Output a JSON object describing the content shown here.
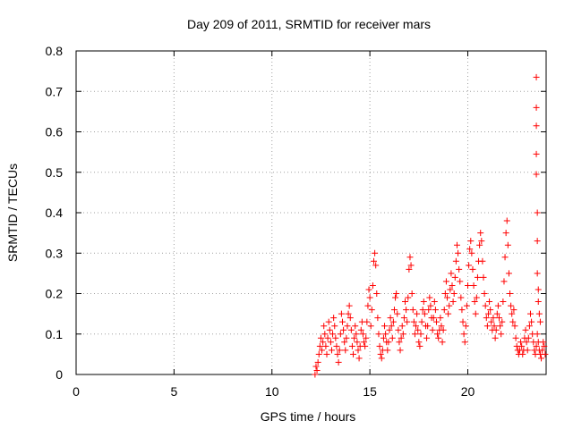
{
  "chart_data": {
    "type": "scatter",
    "title": "Day 209 of 2011, SRMTID for receiver mars",
    "xlabel": "GPS time / hours",
    "ylabel": "SRMTID / TECUs",
    "xlim": [
      0,
      24
    ],
    "ylim": [
      0,
      0.8
    ],
    "x_ticks": [
      0,
      5,
      10,
      15,
      20
    ],
    "y_ticks": [
      0,
      0.1,
      0.2,
      0.3,
      0.4,
      0.5,
      0.6,
      0.7,
      0.8
    ],
    "x_tick_labels": [
      "0",
      "5",
      "10",
      "15",
      "20"
    ],
    "y_tick_labels": [
      "0",
      "0.1",
      "0.2",
      "0.3",
      "0.4",
      "0.5",
      "0.6",
      "0.7",
      "0.8"
    ],
    "grid": true,
    "marker": "+",
    "color": "#ff0000",
    "series": [
      {
        "name": "SRMTID",
        "points": [
          [
            12.2,
            0.0
          ],
          [
            12.25,
            0.02
          ],
          [
            12.3,
            0.01
          ],
          [
            12.35,
            0.03
          ],
          [
            12.4,
            0.05
          ],
          [
            12.45,
            0.07
          ],
          [
            12.5,
            0.09
          ],
          [
            12.55,
            0.06
          ],
          [
            12.6,
            0.08
          ],
          [
            12.65,
            0.12
          ],
          [
            12.7,
            0.1
          ],
          [
            12.75,
            0.07
          ],
          [
            12.8,
            0.05
          ],
          [
            12.85,
            0.09
          ],
          [
            12.9,
            0.13
          ],
          [
            12.95,
            0.11
          ],
          [
            13.0,
            0.08
          ],
          [
            13.05,
            0.06
          ],
          [
            13.1,
            0.1
          ],
          [
            13.15,
            0.14
          ],
          [
            13.2,
            0.12
          ],
          [
            13.25,
            0.09
          ],
          [
            13.3,
            0.07
          ],
          [
            13.35,
            0.05
          ],
          [
            13.4,
            0.03
          ],
          [
            13.45,
            0.06
          ],
          [
            13.5,
            0.1
          ],
          [
            13.55,
            0.15
          ],
          [
            13.6,
            0.13
          ],
          [
            13.65,
            0.11
          ],
          [
            13.7,
            0.08
          ],
          [
            13.75,
            0.06
          ],
          [
            13.8,
            0.09
          ],
          [
            13.85,
            0.12
          ],
          [
            13.9,
            0.15
          ],
          [
            13.95,
            0.17
          ],
          [
            14.0,
            0.14
          ],
          [
            14.05,
            0.11
          ],
          [
            14.1,
            0.07
          ],
          [
            14.15,
            0.05
          ],
          [
            14.2,
            0.09
          ],
          [
            14.25,
            0.12
          ],
          [
            14.3,
            0.1
          ],
          [
            14.35,
            0.08
          ],
          [
            14.4,
            0.06
          ],
          [
            14.45,
            0.04
          ],
          [
            14.5,
            0.07
          ],
          [
            14.55,
            0.11
          ],
          [
            14.6,
            0.13
          ],
          [
            14.65,
            0.1
          ],
          [
            14.7,
            0.08
          ],
          [
            14.75,
            0.07
          ],
          [
            14.8,
            0.09
          ],
          [
            14.85,
            0.13
          ],
          [
            14.9,
            0.17
          ],
          [
            14.95,
            0.21
          ],
          [
            15.0,
            0.19
          ],
          [
            15.05,
            0.12
          ],
          [
            15.1,
            0.16
          ],
          [
            15.15,
            0.22
          ],
          [
            15.2,
            0.28
          ],
          [
            15.25,
            0.3
          ],
          [
            15.3,
            0.27
          ],
          [
            15.35,
            0.2
          ],
          [
            15.4,
            0.14
          ],
          [
            15.45,
            0.1
          ],
          [
            15.5,
            0.07
          ],
          [
            15.55,
            0.05
          ],
          [
            15.6,
            0.04
          ],
          [
            15.65,
            0.06
          ],
          [
            15.7,
            0.09
          ],
          [
            15.75,
            0.12
          ],
          [
            15.8,
            0.1
          ],
          [
            15.85,
            0.08
          ],
          [
            15.9,
            0.06
          ],
          [
            15.95,
            0.08
          ],
          [
            16.0,
            0.11
          ],
          [
            16.05,
            0.14
          ],
          [
            16.1,
            0.12
          ],
          [
            16.15,
            0.09
          ],
          [
            16.2,
            0.13
          ],
          [
            16.25,
            0.16
          ],
          [
            16.3,
            0.19
          ],
          [
            16.35,
            0.2
          ],
          [
            16.4,
            0.15
          ],
          [
            16.45,
            0.11
          ],
          [
            16.5,
            0.08
          ],
          [
            16.55,
            0.06
          ],
          [
            16.6,
            0.09
          ],
          [
            16.65,
            0.12
          ],
          [
            16.7,
            0.1
          ],
          [
            16.75,
            0.14
          ],
          [
            16.8,
            0.18
          ],
          [
            16.85,
            0.16
          ],
          [
            16.9,
            0.13
          ],
          [
            16.95,
            0.19
          ],
          [
            17.0,
            0.26
          ],
          [
            17.05,
            0.29
          ],
          [
            17.1,
            0.27
          ],
          [
            17.15,
            0.2
          ],
          [
            17.2,
            0.16
          ],
          [
            17.25,
            0.13
          ],
          [
            17.3,
            0.1
          ],
          [
            17.35,
            0.12
          ],
          [
            17.4,
            0.15
          ],
          [
            17.45,
            0.11
          ],
          [
            17.5,
            0.08
          ],
          [
            17.55,
            0.07
          ],
          [
            17.6,
            0.1
          ],
          [
            17.65,
            0.13
          ],
          [
            17.7,
            0.16
          ],
          [
            17.75,
            0.18
          ],
          [
            17.8,
            0.15
          ],
          [
            17.85,
            0.12
          ],
          [
            17.9,
            0.09
          ],
          [
            17.95,
            0.12
          ],
          [
            18.0,
            0.16
          ],
          [
            18.05,
            0.19
          ],
          [
            18.1,
            0.17
          ],
          [
            18.15,
            0.14
          ],
          [
            18.2,
            0.11
          ],
          [
            18.25,
            0.14
          ],
          [
            18.3,
            0.18
          ],
          [
            18.35,
            0.16
          ],
          [
            18.4,
            0.13
          ],
          [
            18.45,
            0.1
          ],
          [
            18.5,
            0.09
          ],
          [
            18.55,
            0.11
          ],
          [
            18.6,
            0.14
          ],
          [
            18.65,
            0.12
          ],
          [
            18.7,
            0.08
          ],
          [
            18.75,
            0.11
          ],
          [
            18.8,
            0.16
          ],
          [
            18.85,
            0.2
          ],
          [
            18.9,
            0.23
          ],
          [
            18.95,
            0.19
          ],
          [
            19.0,
            0.15
          ],
          [
            19.05,
            0.17
          ],
          [
            19.1,
            0.21
          ],
          [
            19.15,
            0.25
          ],
          [
            19.2,
            0.22
          ],
          [
            19.25,
            0.18
          ],
          [
            19.3,
            0.2
          ],
          [
            19.35,
            0.24
          ],
          [
            19.4,
            0.28
          ],
          [
            19.45,
            0.32
          ],
          [
            19.5,
            0.3
          ],
          [
            19.55,
            0.26
          ],
          [
            19.6,
            0.23
          ],
          [
            19.65,
            0.19
          ],
          [
            19.7,
            0.16
          ],
          [
            19.75,
            0.13
          ],
          [
            19.8,
            0.1
          ],
          [
            19.85,
            0.08
          ],
          [
            19.9,
            0.12
          ],
          [
            19.95,
            0.17
          ],
          [
            20.0,
            0.22
          ],
          [
            20.05,
            0.27
          ],
          [
            20.1,
            0.31
          ],
          [
            20.15,
            0.33
          ],
          [
            20.2,
            0.3
          ],
          [
            20.25,
            0.26
          ],
          [
            20.3,
            0.22
          ],
          [
            20.35,
            0.18
          ],
          [
            20.4,
            0.15
          ],
          [
            20.45,
            0.19
          ],
          [
            20.5,
            0.24
          ],
          [
            20.55,
            0.28
          ],
          [
            20.6,
            0.32
          ],
          [
            20.65,
            0.35
          ],
          [
            20.7,
            0.33
          ],
          [
            20.75,
            0.28
          ],
          [
            20.8,
            0.24
          ],
          [
            20.85,
            0.2
          ],
          [
            20.9,
            0.17
          ],
          [
            20.95,
            0.14
          ],
          [
            21.0,
            0.12
          ],
          [
            21.05,
            0.15
          ],
          [
            21.1,
            0.18
          ],
          [
            21.15,
            0.16
          ],
          [
            21.2,
            0.13
          ],
          [
            21.25,
            0.11
          ],
          [
            21.3,
            0.14
          ],
          [
            21.35,
            0.12
          ],
          [
            21.4,
            0.09
          ],
          [
            21.45,
            0.11
          ],
          [
            21.5,
            0.15
          ],
          [
            21.55,
            0.17
          ],
          [
            21.6,
            0.14
          ],
          [
            21.65,
            0.12
          ],
          [
            21.7,
            0.1
          ],
          [
            21.75,
            0.13
          ],
          [
            21.8,
            0.18
          ],
          [
            21.85,
            0.23
          ],
          [
            21.9,
            0.29
          ],
          [
            21.95,
            0.35
          ],
          [
            22.0,
            0.38
          ],
          [
            22.05,
            0.32
          ],
          [
            22.1,
            0.25
          ],
          [
            22.15,
            0.2
          ],
          [
            22.2,
            0.17
          ],
          [
            22.25,
            0.15
          ],
          [
            22.3,
            0.13
          ],
          [
            22.35,
            0.16
          ],
          [
            22.4,
            0.12
          ],
          [
            22.45,
            0.09
          ],
          [
            22.5,
            0.07
          ],
          [
            22.55,
            0.06
          ],
          [
            22.6,
            0.05
          ],
          [
            22.65,
            0.06
          ],
          [
            22.7,
            0.08
          ],
          [
            22.75,
            0.07
          ],
          [
            22.8,
            0.05
          ],
          [
            22.85,
            0.06
          ],
          [
            22.9,
            0.09
          ],
          [
            22.95,
            0.11
          ],
          [
            23.0,
            0.08
          ],
          [
            23.05,
            0.06
          ],
          [
            23.1,
            0.09
          ],
          [
            23.15,
            0.12
          ],
          [
            23.2,
            0.15
          ],
          [
            23.25,
            0.13
          ],
          [
            23.3,
            0.1
          ],
          [
            23.35,
            0.08
          ],
          [
            23.4,
            0.06
          ],
          [
            23.45,
            0.05
          ],
          [
            23.5,
            0.07
          ],
          [
            23.55,
            0.1
          ],
          [
            23.6,
            0.08
          ],
          [
            23.65,
            0.06
          ],
          [
            23.7,
            0.05
          ],
          [
            23.75,
            0.04
          ],
          [
            23.8,
            0.06
          ],
          [
            23.85,
            0.08
          ],
          [
            23.9,
            0.07
          ],
          [
            23.95,
            0.05
          ],
          [
            23.5,
            0.735
          ],
          [
            23.5,
            0.66
          ],
          [
            23.5,
            0.615
          ],
          [
            23.5,
            0.545
          ],
          [
            23.5,
            0.495
          ],
          [
            23.55,
            0.4
          ],
          [
            23.55,
            0.33
          ],
          [
            23.55,
            0.25
          ],
          [
            23.6,
            0.21
          ],
          [
            23.6,
            0.18
          ],
          [
            23.65,
            0.15
          ],
          [
            23.7,
            0.13
          ]
        ]
      }
    ]
  }
}
